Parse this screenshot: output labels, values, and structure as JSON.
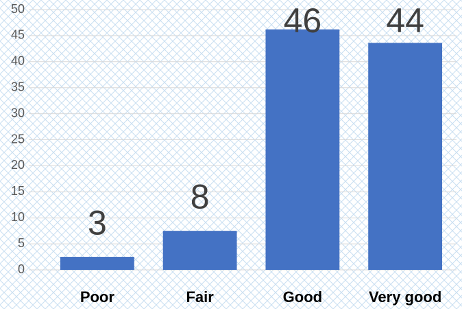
{
  "chart_data": {
    "type": "bar",
    "categories": [
      "Poor",
      "Fair",
      "Good",
      "Very good"
    ],
    "values": [
      2.5,
      7.5,
      46.2,
      43.6
    ],
    "value_labels": [
      "3",
      "8",
      "46",
      "44"
    ],
    "color": "#4472c4",
    "ylim": [
      0,
      50
    ],
    "yticks": [
      0,
      5,
      10,
      15,
      20,
      25,
      30,
      35,
      40,
      45,
      50
    ],
    "grid": true
  }
}
